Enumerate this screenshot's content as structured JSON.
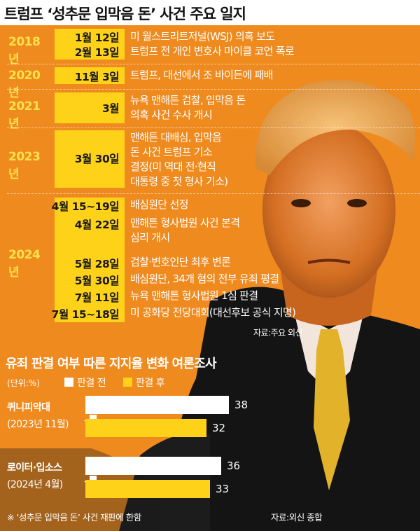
{
  "title": "트럼프 ‘성추문 입막음 돈’ 사건 주요 일지",
  "timeline": [
    {
      "year": "2018년",
      "entries": [
        {
          "date": "1월 12일",
          "text": [
            "미 월스트리트저널(WSJ) 의혹 보도"
          ]
        },
        {
          "date": "2월 13일",
          "text": [
            "트럼프 전 개인 변호사 마이클 코언 폭로"
          ]
        }
      ]
    },
    {
      "year": "2020년",
      "entries": [
        {
          "date": "11월 3일",
          "text": [
            "트럼프, 대선에서 조 바이든에 패배"
          ]
        }
      ]
    },
    {
      "year": "2021년",
      "entries": [
        {
          "date": "3월",
          "text": [
            "뉴욕 맨해튼 검찰, 입막음 돈",
            "의혹 사건 수사 개시"
          ]
        }
      ]
    },
    {
      "year": "2023년",
      "entries": [
        {
          "date": "3월 30일",
          "text": [
            "맨해튼 대배심, 입막음",
            "돈 사건 트럼프 기소",
            "결정(미 역대 전·현직",
            "대통령 중 첫 형사 기소)"
          ]
        }
      ]
    },
    {
      "year": "2024년",
      "entries": [
        {
          "date": "4월 15~19일",
          "text": [
            "배심원단 선정"
          ]
        },
        {
          "date": "4월 22일",
          "text": [
            "맨해튼 형사법원 사건 본격",
            "심리 개시"
          ]
        },
        {
          "date": "5월 28일",
          "text": [
            "검찰·변호인단 최후 변론"
          ]
        },
        {
          "date": "5월 30일",
          "text": [
            "배심원단, 34개 혐의 전부 유죄 평결"
          ]
        },
        {
          "date": "7월 11일",
          "text": [
            "뉴욕 맨해튼 형사법원 1심 판결"
          ]
        },
        {
          "date": "7월 15~18일",
          "text": [
            "미 공화당 전당대회(대선후보 공식 지명)"
          ]
        }
      ]
    }
  ],
  "timeline_source": "자료:주요 외신",
  "poll": {
    "title": "유죄 판결 여부 따른 지지율 변화 여론조사",
    "unit": "(단위:%)",
    "legend": [
      {
        "label": "판결 전",
        "color": "#ffffff"
      },
      {
        "label": "판결 후",
        "color": "#ffd21a"
      }
    ],
    "note": "※ ‘성추문 입막음 돈’ 사건 재판에 한함",
    "source": "자료:외신 종합"
  },
  "chart_data": {
    "type": "bar",
    "title": "유죄 판결 여부 따른 지지율 변화 여론조사",
    "unit": "(단위:%)",
    "categories": [
      "퀴니피악대 (2023년 11월)",
      "로이터·입소스 (2024년 4월)"
    ],
    "series": [
      {
        "name": "판결 전",
        "values": [
          38,
          36
        ]
      },
      {
        "name": "판결 후",
        "values": [
          32,
          33
        ]
      }
    ],
    "pollsters": [
      {
        "name": "퀴니피악대",
        "date": "(2023년 11월)"
      },
      {
        "name": "로이터·입소스",
        "date": "(2024년 4월)"
      }
    ]
  },
  "colors": {
    "background": "#ef8a1f",
    "highlight": "#ffd21a",
    "year_text": "#ffe24a"
  }
}
